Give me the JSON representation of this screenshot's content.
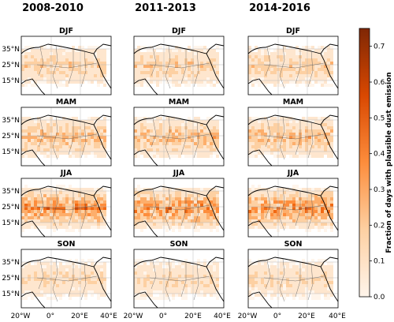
{
  "figure": {
    "column_titles": [
      "2008-2010",
      "2011-2013",
      "2014-2016"
    ],
    "season_titles": [
      "DJF",
      "MAM",
      "JJA",
      "SON"
    ],
    "lat_ticks": [
      "35°N",
      "25°N",
      "15°N"
    ],
    "lon_ticks": [
      "20°W",
      "0°",
      "20°E",
      "40°E"
    ],
    "colorbar": {
      "label": "Fraction of days with plausible dust emission",
      "ticks": [
        "0.0",
        "0.1",
        "0.2",
        "0.3",
        "0.4",
        "0.5",
        "0.6",
        "0.7"
      ],
      "range": [
        0.0,
        0.75
      ],
      "colormap": "Oranges",
      "colors": [
        "#fff5eb",
        "#fdd0a2",
        "#fd8d3c",
        "#d94801",
        "#7f2704"
      ]
    },
    "season_intensity": {
      "DJF": 0.22,
      "MAM": 0.28,
      "JJA": 0.42,
      "SON": 0.18
    }
  }
}
